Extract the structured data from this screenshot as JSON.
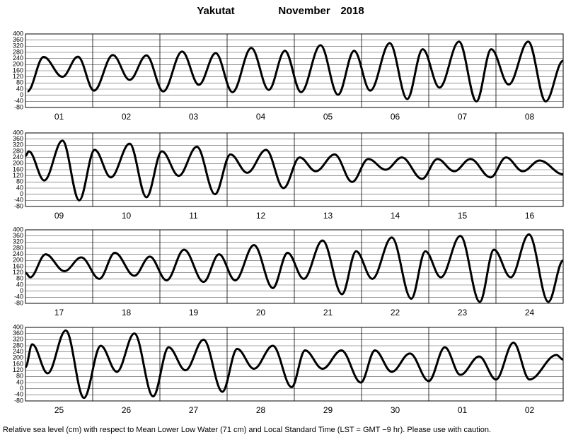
{
  "title": "Yakutat",
  "month": "November",
  "year": "2018",
  "footnote": "Relative sea level (cm) with respect to Mean Lower Low Water (71 cm) and Local Standard Time (LST = GMT −9 hr). Please use with caution.",
  "chart_data": [
    {
      "type": "line",
      "color": "#000000",
      "xlim": [
        0,
        8
      ],
      "ylim": [
        -80,
        400
      ],
      "yticks": [
        -80,
        -40,
        0,
        40,
        80,
        120,
        160,
        200,
        240,
        280,
        320,
        360,
        400
      ],
      "grid": true,
      "categories": [
        "01",
        "02",
        "03",
        "04",
        "05",
        "06",
        "07",
        "08"
      ],
      "x": [
        0.03,
        0.27,
        0.55,
        0.78,
        1.02,
        1.3,
        1.55,
        1.8,
        2.05,
        2.33,
        2.58,
        2.83,
        3.08,
        3.36,
        3.62,
        3.86,
        4.1,
        4.39,
        4.65,
        4.89,
        5.13,
        5.42,
        5.68,
        5.91,
        6.16,
        6.45,
        6.71,
        6.93,
        7.19,
        7.48,
        7.74,
        8.0
      ],
      "values": [
        25,
        250,
        120,
        252,
        30,
        262,
        100,
        260,
        25,
        285,
        68,
        275,
        20,
        308,
        35,
        290,
        20,
        326,
        3,
        290,
        30,
        340,
        -25,
        300,
        50,
        350,
        -40,
        300,
        70,
        350,
        -40,
        225
      ]
    },
    {
      "type": "line",
      "color": "#000000",
      "xlim": [
        0,
        8
      ],
      "ylim": [
        -80,
        400
      ],
      "yticks": [
        -80,
        -40,
        0,
        40,
        80,
        120,
        160,
        200,
        240,
        280,
        320,
        360,
        400
      ],
      "grid": true,
      "categories": [
        "09",
        "10",
        "11",
        "12",
        "13",
        "14",
        "15",
        "16"
      ],
      "x": [
        0.0,
        0.05,
        0.28,
        0.55,
        0.8,
        1.03,
        1.27,
        1.55,
        1.8,
        2.03,
        2.28,
        2.55,
        2.82,
        3.05,
        3.3,
        3.58,
        3.84,
        4.08,
        4.32,
        4.6,
        4.86,
        5.1,
        5.36,
        5.6,
        5.9,
        6.13,
        6.38,
        6.62,
        6.92,
        7.15,
        7.4,
        7.65,
        8.0
      ],
      "values": [
        250,
        280,
        90,
        350,
        -40,
        290,
        110,
        330,
        -20,
        280,
        120,
        310,
        0,
        260,
        140,
        290,
        40,
        240,
        150,
        260,
        80,
        230,
        160,
        240,
        100,
        230,
        150,
        230,
        110,
        240,
        150,
        220,
        130
      ]
    },
    {
      "type": "line",
      "color": "#000000",
      "xlim": [
        0,
        8
      ],
      "ylim": [
        -80,
        400
      ],
      "yticks": [
        -80,
        -40,
        0,
        40,
        80,
        120,
        160,
        200,
        240,
        280,
        320,
        360,
        400
      ],
      "grid": true,
      "categories": [
        "17",
        "18",
        "19",
        "20",
        "21",
        "22",
        "23",
        "24"
      ],
      "x": [
        0.0,
        0.07,
        0.3,
        0.58,
        0.83,
        1.1,
        1.33,
        1.62,
        1.85,
        2.1,
        2.36,
        2.65,
        2.88,
        3.12,
        3.4,
        3.68,
        3.9,
        4.14,
        4.42,
        4.71,
        4.92,
        5.16,
        5.45,
        5.74,
        5.95,
        6.18,
        6.47,
        6.76,
        6.97,
        7.22,
        7.49,
        7.78,
        8.0
      ],
      "values": [
        120,
        90,
        240,
        130,
        220,
        80,
        250,
        100,
        225,
        70,
        270,
        60,
        240,
        70,
        300,
        20,
        250,
        80,
        330,
        -20,
        260,
        80,
        350,
        -50,
        260,
        90,
        360,
        -70,
        270,
        90,
        370,
        -70,
        200
      ]
    },
    {
      "type": "line",
      "color": "#000000",
      "xlim": [
        0,
        8
      ],
      "ylim": [
        -80,
        400
      ],
      "yticks": [
        -80,
        -40,
        0,
        40,
        80,
        120,
        160,
        200,
        240,
        280,
        320,
        360,
        400
      ],
      "grid": true,
      "categories": [
        "25",
        "26",
        "27",
        "28",
        "29",
        "30",
        "01",
        "02"
      ],
      "x": [
        0.0,
        0.1,
        0.33,
        0.6,
        0.87,
        1.12,
        1.36,
        1.62,
        1.9,
        2.13,
        2.38,
        2.65,
        2.93,
        3.15,
        3.4,
        3.68,
        3.96,
        4.16,
        4.42,
        4.7,
        4.99,
        5.2,
        5.45,
        5.72,
        6.0,
        6.24,
        6.47,
        6.75,
        7.0,
        7.26,
        7.5,
        7.9,
        8.0
      ],
      "values": [
        140,
        290,
        100,
        380,
        -60,
        280,
        110,
        360,
        -50,
        270,
        120,
        320,
        -20,
        260,
        130,
        280,
        10,
        250,
        130,
        250,
        40,
        250,
        110,
        230,
        50,
        270,
        90,
        210,
        60,
        300,
        60,
        220,
        190
      ]
    }
  ]
}
